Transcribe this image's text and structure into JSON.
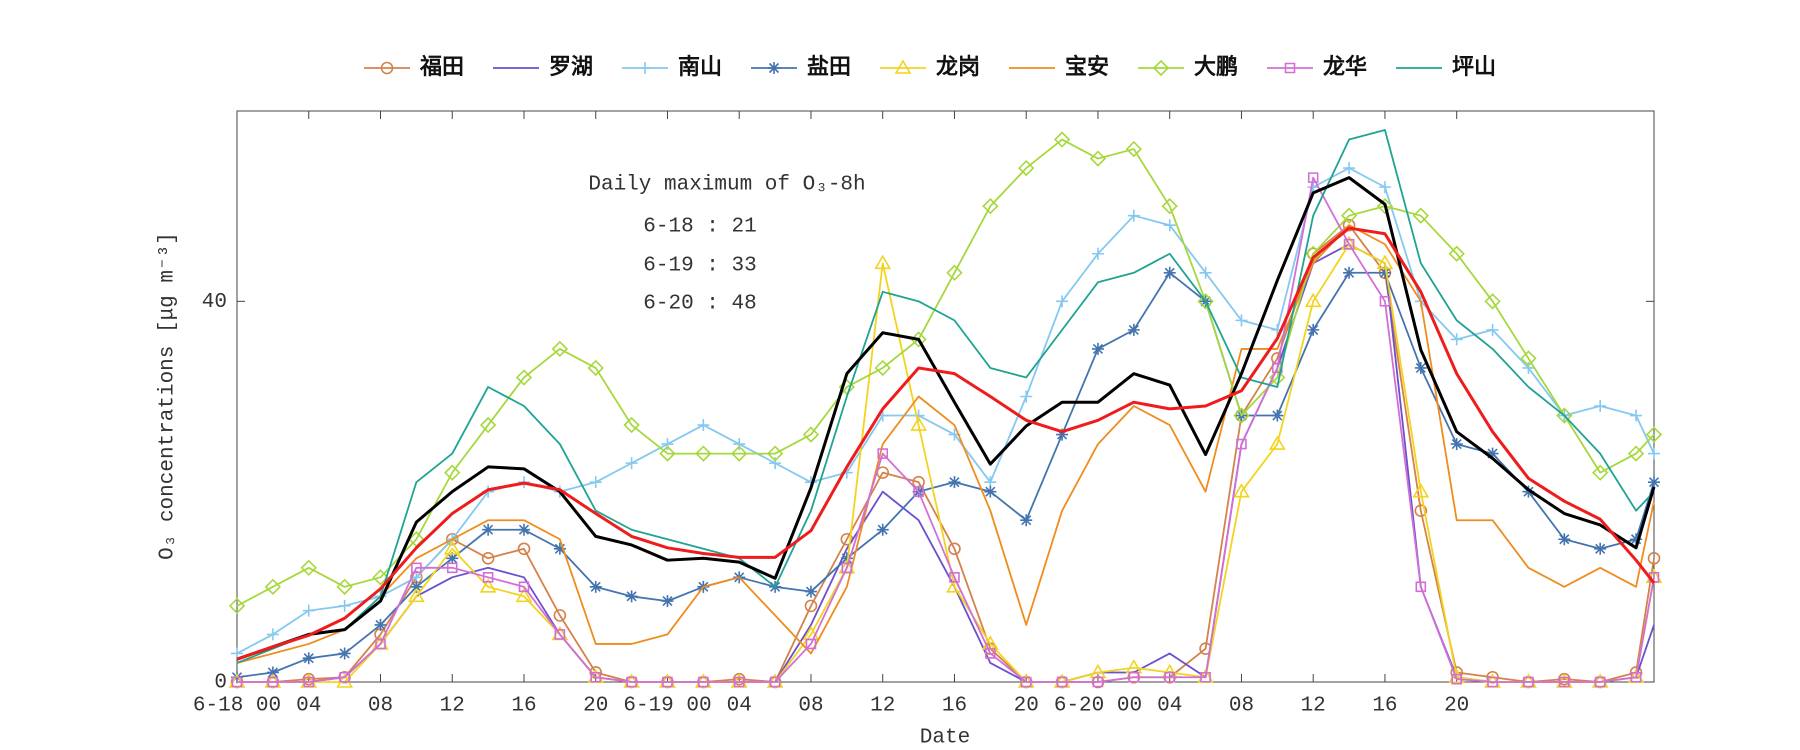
{
  "chart_data": {
    "type": "line",
    "x_label": "Date",
    "y_label": "O₃ concentrations [μg m⁻³]",
    "annotation": {
      "title": "Daily maximum of O₃-8h",
      "lines": [
        "6-18 : 21",
        "6-19 : 33",
        "6-20 : 48"
      ]
    },
    "xlim": [
      0,
      79
    ],
    "ylim": [
      0,
      60
    ],
    "xticks": [
      {
        "value": 0,
        "label": "6-18 00"
      },
      {
        "value": 4,
        "label": "04"
      },
      {
        "value": 8,
        "label": "08"
      },
      12,
      16,
      20,
      {
        "value": 24,
        "label": "6-19 00"
      },
      {
        "value": 28,
        "label": "04"
      },
      {
        "value": 32,
        "label": "08"
      },
      {
        "value": 36,
        "label": "12"
      },
      {
        "value": 40,
        "label": "16"
      },
      {
        "value": 44,
        "label": "20"
      },
      {
        "value": 48,
        "label": "6-20 00"
      },
      {
        "value": 52,
        "label": "04"
      },
      {
        "value": 56,
        "label": "08"
      },
      {
        "value": 60,
        "label": "12"
      },
      {
        "value": 64,
        "label": "16"
      },
      {
        "value": 68,
        "label": "20"
      }
    ],
    "yticks": [
      0,
      40
    ],
    "grid": false,
    "legend": "top",
    "x": [
      0,
      2,
      4,
      6,
      8,
      10,
      12,
      14,
      16,
      18,
      20,
      22,
      24,
      26,
      28,
      30,
      32,
      34,
      36,
      38,
      40,
      42,
      44,
      46,
      48,
      50,
      52,
      54,
      56,
      58,
      60,
      62,
      64,
      66,
      68,
      70,
      72,
      74,
      76,
      78,
      79
    ],
    "series": [
      {
        "name": "福田",
        "color": "#d4824a",
        "marker": "circle",
        "values": [
          0,
          0,
          0.3,
          0.5,
          5,
          11,
          15,
          13,
          14,
          7,
          1,
          0,
          0,
          0,
          0.3,
          0,
          8,
          15,
          22,
          21,
          14,
          3.5,
          0,
          0,
          0,
          0.5,
          0.5,
          3.5,
          28,
          34,
          45,
          48,
          43,
          18,
          1,
          0.5,
          0,
          0.3,
          0,
          1,
          13
        ]
      },
      {
        "name": "罗湖",
        "color": "#6a4fd0",
        "marker": "none",
        "values": [
          0,
          0,
          0,
          0.5,
          4,
          9,
          11,
          12,
          11,
          5,
          0.5,
          0,
          0,
          0,
          0,
          0,
          6,
          14,
          20,
          17,
          10,
          2,
          0,
          0,
          1,
          1,
          3,
          0.5,
          25,
          33,
          44,
          46,
          44,
          10,
          0.5,
          0,
          0,
          0,
          0,
          0.5,
          6
        ]
      },
      {
        "name": "南山",
        "color": "#85c8f0",
        "marker": "plus",
        "values": [
          3,
          5,
          7.5,
          8,
          9,
          11,
          15,
          20,
          21,
          20,
          21,
          23,
          25,
          27,
          25,
          23,
          21,
          22,
          28,
          28,
          26,
          21,
          30,
          40,
          45,
          49,
          48,
          43,
          38,
          37,
          52,
          54,
          52,
          40,
          36,
          37,
          33,
          28,
          29,
          28,
          24
        ]
      },
      {
        "name": "盐田",
        "color": "#4474b0",
        "marker": "asterisk",
        "values": [
          0.5,
          1,
          2.5,
          3,
          6,
          10,
          13,
          16,
          16,
          14,
          10,
          9,
          8.5,
          10,
          11,
          10,
          9.5,
          13,
          16,
          20,
          21,
          20,
          17,
          26,
          35,
          37,
          43,
          40,
          28,
          28,
          37,
          43,
          43,
          33,
          25,
          24,
          20,
          15,
          14,
          15,
          21
        ]
      },
      {
        "name": "龙岗",
        "color": "#f2d41e",
        "marker": "triangle",
        "values": [
          0,
          0,
          0,
          0,
          4,
          9,
          14,
          10,
          9,
          5,
          0.5,
          0,
          0,
          0,
          0,
          0,
          5,
          12,
          44,
          27,
          10,
          4,
          0,
          0,
          1,
          1.5,
          1,
          0.5,
          20,
          25,
          40,
          46,
          44,
          20,
          0.5,
          0,
          0,
          0,
          0,
          0.5,
          11
        ]
      },
      {
        "name": "宝安",
        "color": "#f08c1e",
        "marker": "none",
        "values": [
          2,
          3,
          4,
          5.5,
          9,
          13,
          15,
          17,
          17,
          15,
          4,
          4,
          5,
          10,
          11,
          7,
          3,
          10,
          25,
          30,
          27,
          18,
          6,
          18,
          25,
          29,
          27,
          20,
          35,
          35,
          44,
          48,
          46,
          40,
          17,
          17,
          12,
          10,
          12,
          10,
          19
        ]
      },
      {
        "name": "大鹏",
        "color": "#a6d83c",
        "marker": "diamond",
        "values": [
          8,
          10,
          12,
          10,
          11,
          15,
          22,
          27,
          32,
          35,
          33,
          27,
          24,
          24,
          24,
          24,
          26,
          31,
          33,
          36,
          43,
          50,
          54,
          57,
          55,
          56,
          50,
          40,
          28,
          32,
          45,
          49,
          50,
          49,
          45,
          40,
          34,
          28,
          22,
          24,
          26
        ]
      },
      {
        "name": "龙华",
        "color": "#d26fd6",
        "marker": "square",
        "values": [
          0,
          0,
          0,
          0.5,
          4,
          12,
          12,
          11,
          10,
          5,
          0.5,
          0,
          0,
          0,
          0,
          0,
          4,
          12,
          24,
          20,
          11,
          3,
          0,
          0,
          0,
          0.5,
          0.5,
          0.5,
          25,
          33,
          53,
          46,
          40,
          10,
          0.3,
          0,
          0,
          0,
          0,
          0.5,
          11
        ]
      },
      {
        "name": "坪山",
        "color": "#1fa393",
        "marker": "none",
        "values": [
          2,
          3.5,
          5,
          5.5,
          9,
          21,
          24,
          31,
          29,
          25,
          18,
          16,
          15,
          14,
          13,
          10,
          18,
          30,
          41,
          40,
          38,
          33,
          32,
          37,
          42,
          43,
          45,
          40,
          32,
          31,
          49,
          57,
          58,
          44,
          38,
          35,
          31,
          28,
          24,
          18,
          20
        ]
      },
      {
        "color": "#000000",
        "marker": "none",
        "width": 3,
        "values": [
          2.4,
          3.7,
          5,
          5.5,
          8.5,
          16.8,
          20,
          22.6,
          22.4,
          20,
          15.3,
          14.4,
          12.8,
          13,
          12.6,
          10.9,
          20.4,
          32.4,
          36.7,
          36,
          29.4,
          22.9,
          26.9,
          29.4,
          29.4,
          32.4,
          31.2,
          23.9,
          32.4,
          42.2,
          51.4,
          53,
          50.2,
          34.9,
          26.3,
          23.5,
          20.2,
          17.7,
          16.5,
          14.1,
          20.5
        ]
      },
      {
        "color": "#ee1c1c",
        "marker": "none",
        "width": 3,
        "values": [
          2.4,
          3.7,
          4.9,
          6.7,
          9.8,
          14.1,
          17.7,
          20.2,
          20.9,
          20.2,
          17.7,
          15.3,
          14.1,
          13.5,
          13.1,
          13.1,
          15.9,
          22.6,
          28.7,
          33,
          32.4,
          30,
          27.5,
          26.3,
          27.5,
          29.4,
          28.7,
          29,
          30.6,
          36.1,
          44.6,
          47.7,
          47.1,
          41,
          32.4,
          26.3,
          21.4,
          19,
          17.1,
          12.8,
          10.4
        ]
      }
    ]
  }
}
